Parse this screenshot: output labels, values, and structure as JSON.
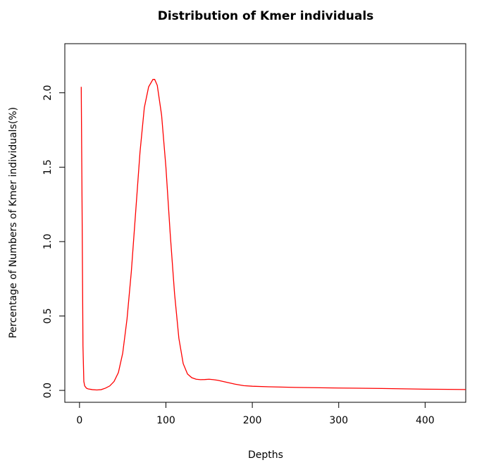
{
  "chart_data": {
    "type": "line",
    "title": "Distribution of Kmer individuals",
    "xlabel": "Depths",
    "ylabel": "Percentage of Numbers of Kmer individuals(%)",
    "xlim": [
      -17,
      447
    ],
    "ylim": [
      -0.08,
      2.33
    ],
    "xticks": [
      0,
      100,
      200,
      300,
      400
    ],
    "yticks": [
      0.0,
      0.5,
      1.0,
      1.5,
      2.0
    ],
    "xtick_labels": [
      "0",
      "100",
      "200",
      "300",
      "400"
    ],
    "ytick_labels": [
      "0.0",
      "0.5",
      "1.0",
      "1.5",
      "2.0"
    ],
    "grid": false,
    "line_color": "#ff0000",
    "series": [
      {
        "x": [
          2,
          3,
          4,
          5,
          6,
          8,
          10,
          15,
          20,
          25,
          30,
          35,
          40,
          45,
          50,
          55,
          60,
          65,
          70,
          75,
          80,
          85,
          87,
          90,
          95,
          100,
          105,
          110,
          115,
          120,
          125,
          130,
          135,
          140,
          145,
          150,
          155,
          160,
          170,
          180,
          190,
          200,
          220,
          250,
          300,
          350,
          400,
          447
        ],
        "y": [
          2.04,
          1.2,
          0.3,
          0.06,
          0.03,
          0.015,
          0.01,
          0.005,
          0.003,
          0.005,
          0.015,
          0.03,
          0.06,
          0.12,
          0.25,
          0.48,
          0.8,
          1.2,
          1.6,
          1.9,
          2.04,
          2.09,
          2.09,
          2.05,
          1.85,
          1.5,
          1.05,
          0.65,
          0.35,
          0.18,
          0.11,
          0.085,
          0.075,
          0.072,
          0.073,
          0.075,
          0.072,
          0.068,
          0.055,
          0.042,
          0.032,
          0.028,
          0.024,
          0.02,
          0.016,
          0.013,
          0.008,
          0.006
        ]
      }
    ]
  }
}
